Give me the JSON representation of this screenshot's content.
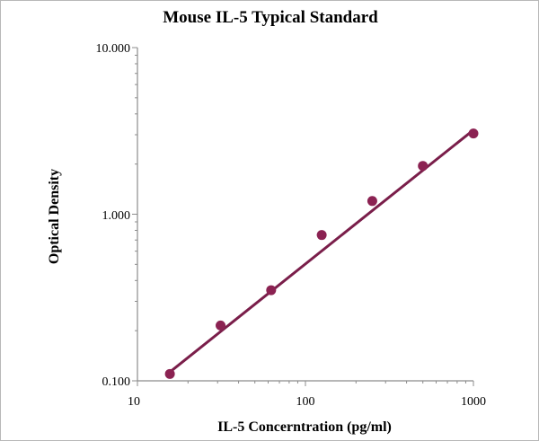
{
  "chart_data": {
    "type": "scatter",
    "title": "Mouse IL-5 Typical Standard",
    "xlabel": "IL-5 Concerntration (pg/ml)",
    "ylabel": "Optical Density",
    "x_scale": "log",
    "y_scale": "log",
    "xlim": [
      10,
      1000
    ],
    "ylim": [
      0.1,
      10
    ],
    "x_ticks": [
      "10",
      "100",
      "1000"
    ],
    "y_ticks": [
      "0.100",
      "1.000",
      "10.000"
    ],
    "grid": false,
    "legend": "none",
    "series": [
      {
        "x": [
          15.6,
          31.25,
          62.5,
          125,
          250,
          500,
          1000
        ],
        "y": [
          0.11,
          0.215,
          0.35,
          0.75,
          1.2,
          1.95,
          3.05
        ]
      }
    ],
    "fit_line": {
      "x": [
        15.6,
        1000
      ],
      "y": [
        0.113,
        3.2
      ]
    },
    "colors": {
      "marker": "#8b2252",
      "line": "#7a1e4a",
      "axis": "#8c8c8c"
    }
  }
}
